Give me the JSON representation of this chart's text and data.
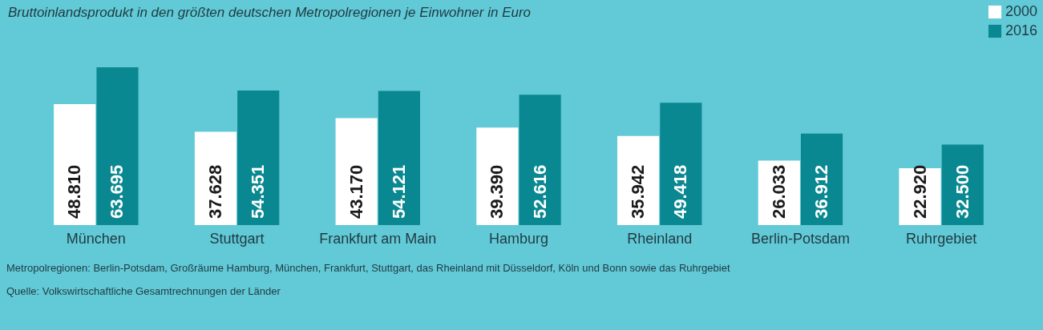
{
  "chart_data": {
    "type": "bar",
    "title": "Bruttoinlandsprodukt in den größten deutschen Metropolregionen je Einwohner in Euro",
    "categories": [
      "München",
      "Stuttgart",
      "Frankfurt am Main",
      "Hamburg",
      "Rheinland",
      "Berlin-Potsdam",
      "Ruhrgebiet"
    ],
    "series": [
      {
        "name": "2000",
        "color": "#ffffff",
        "values": [
          48810,
          37628,
          43170,
          39390,
          35942,
          26033,
          22920
        ],
        "value_labels": [
          "48.810",
          "37.628",
          "43.170",
          "39.390",
          "35.942",
          "26.033",
          "22.920"
        ]
      },
      {
        "name": "2016",
        "color": "#0a8891",
        "values": [
          63695,
          54351,
          54121,
          52616,
          49418,
          36912,
          32500
        ],
        "value_labels": [
          "63.695",
          "54.351",
          "54.121",
          "52.616",
          "49.418",
          "36.912",
          "32.500"
        ]
      }
    ],
    "legend": "top right",
    "annotations": [
      "Metropolregionen: Berlin-Potsdam, Großräume Hamburg, München, Frankfurt, Stuttgart, das Rheinland mit Düsseldorf, Köln und Bonn sowie das Ruhrgebiet",
      "Quelle: Volkswirtschaftliche Gesamtrechnungen der Länder"
    ]
  }
}
